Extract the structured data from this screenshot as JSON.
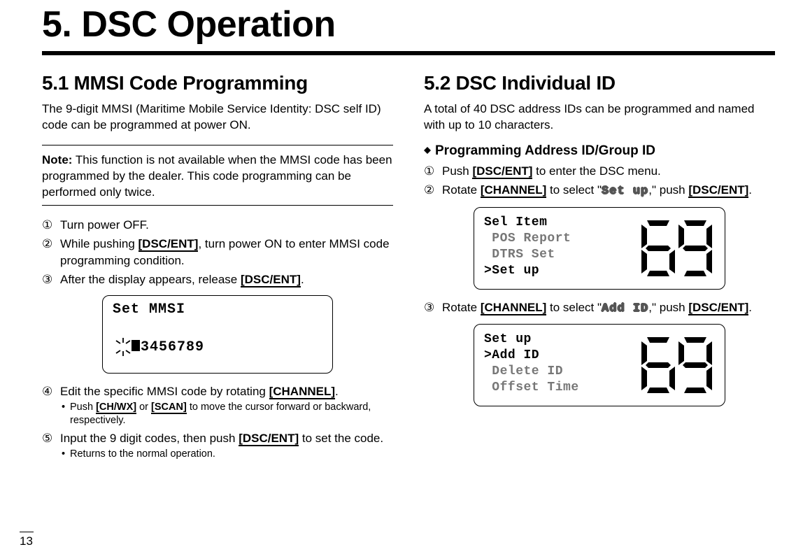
{
  "page_number": "13",
  "chapter_title": "5. DSC Operation",
  "left": {
    "section_title": "5.1 MMSI Code Programming",
    "intro": "The 9-digit MMSI (Maritime Mobile Service Identity: DSC self ID) code can be programmed at power ON.",
    "note_label": "Note:",
    "note_body": " This function is not available when the MMSI code has been programmed by the dealer. This code programming can be performed only twice.",
    "steps": [
      {
        "marker": "①",
        "runs": [
          {
            "t": "Turn power OFF."
          }
        ]
      },
      {
        "marker": "②",
        "runs": [
          {
            "t": "While pushing "
          },
          {
            "t": "[DSC/ENT]",
            "key": true
          },
          {
            "t": ", turn power ON to enter MMSI code programming condition."
          }
        ]
      },
      {
        "marker": "③",
        "runs": [
          {
            "t": "After the display appears, release "
          },
          {
            "t": "[DSC/ENT]",
            "key": true
          },
          {
            "t": "."
          }
        ]
      }
    ],
    "lcd1": {
      "line1": "Set MMSI",
      "cursor_before": "  ",
      "cursor_after": "3456789"
    },
    "steps2": [
      {
        "marker": "④",
        "runs": [
          {
            "t": "Edit the specific MMSI code by rotating "
          },
          {
            "t": "[CHANNEL]",
            "key": true
          },
          {
            "t": "."
          }
        ],
        "sub": [
          {
            "runs": [
              {
                "t": "Push "
              },
              {
                "t": "[CH/WX]",
                "key": true
              },
              {
                "t": " or "
              },
              {
                "t": "[SCAN]",
                "key": true
              },
              {
                "t": " to move the cursor forward or backward, respectively."
              }
            ]
          }
        ]
      },
      {
        "marker": "⑤",
        "runs": [
          {
            "t": "Input the 9 digit codes, then push "
          },
          {
            "t": "[DSC/ENT]",
            "key": true
          },
          {
            "t": " to set the code."
          }
        ],
        "sub": [
          {
            "runs": [
              {
                "t": "Returns to the normal operation."
              }
            ]
          }
        ]
      }
    ]
  },
  "right": {
    "section_title": "5.2 DSC Individual ID",
    "intro": "A total of 40 DSC address IDs can be programmed and named with up to 10 characters.",
    "sub_heading": "Programming Address ID/Group ID",
    "steps": [
      {
        "marker": "①",
        "runs": [
          {
            "t": "Push "
          },
          {
            "t": "[DSC/ENT]",
            "key": true
          },
          {
            "t": " to enter the DSC menu."
          }
        ]
      },
      {
        "marker": "②",
        "runs": [
          {
            "t": "Rotate "
          },
          {
            "t": "[CHANNEL]",
            "key": true
          },
          {
            "t": " to select \""
          },
          {
            "t": "Set up",
            "outline": true
          },
          {
            "t": ",\" push "
          },
          {
            "t": "[DSC/ENT]",
            "key": true
          },
          {
            "t": "."
          }
        ]
      }
    ],
    "lcd_a": {
      "lines": [
        {
          "t": "Sel Item",
          "gray": false
        },
        {
          "t": " POS Report",
          "gray": true
        },
        {
          "t": " DTRS Set",
          "gray": true
        },
        {
          "t": "˃Set up",
          "gray": false
        }
      ],
      "channel": "69"
    },
    "step3": {
      "marker": "③",
      "runs": [
        {
          "t": "Rotate "
        },
        {
          "t": "[CHANNEL]",
          "key": true
        },
        {
          "t": " to select \""
        },
        {
          "t": "Add ID",
          "outline": true
        },
        {
          "t": ",\" push "
        },
        {
          "t": "[DSC/ENT]",
          "key": true
        },
        {
          "t": "."
        }
      ]
    },
    "lcd_b": {
      "lines": [
        {
          "t": "Set up",
          "gray": false
        },
        {
          "t": "˃Add ID",
          "gray": false
        },
        {
          "t": " Delete ID",
          "gray": true
        },
        {
          "t": " Offset Time",
          "gray": true
        }
      ],
      "channel": "69"
    }
  }
}
